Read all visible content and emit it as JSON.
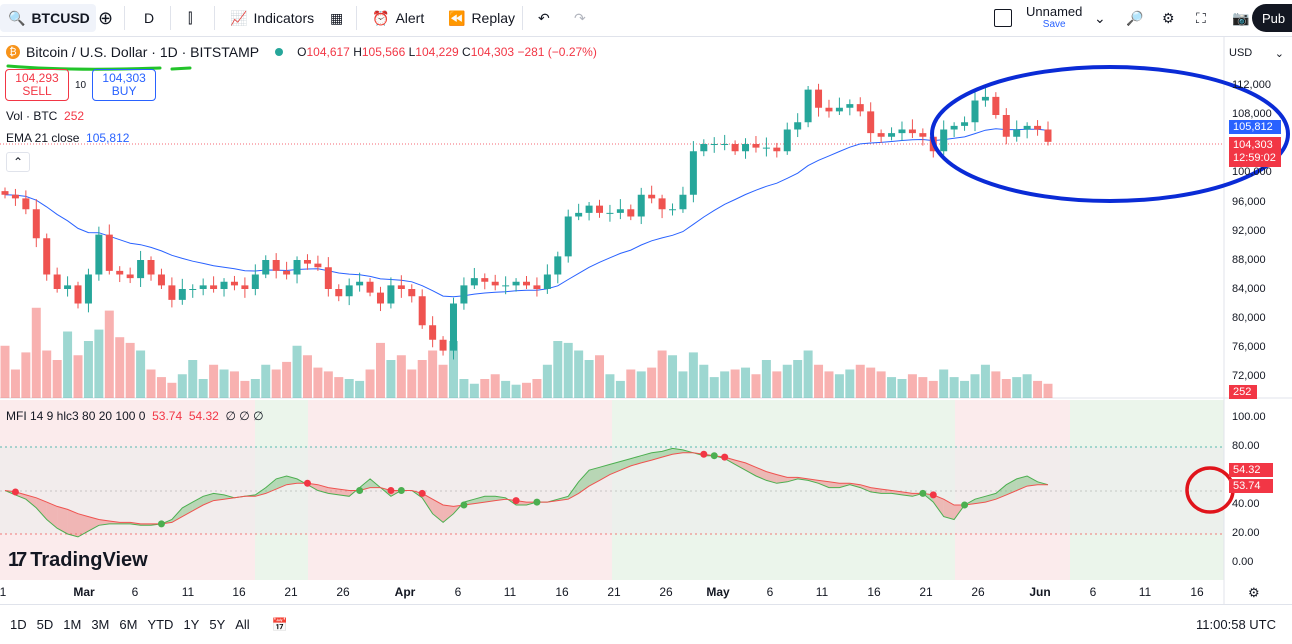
{
  "toolbar": {
    "symbol": "BTCUSD",
    "interval": "D",
    "indicators": "Indicators",
    "alert": "Alert",
    "replay": "Replay",
    "layout_name": "Unnamed",
    "layout_save": "Save",
    "publish": "Pub"
  },
  "legend": {
    "title": "Bitcoin / U.S. Dollar · 1D · BITSTAMP",
    "open_label": "O",
    "open": "104,617",
    "high_label": "H",
    "high": "105,566",
    "low_label": "L",
    "low": "104,229",
    "close_label": "C",
    "close": "104,303",
    "change": "−281 (−0.27%)"
  },
  "trade": {
    "sell_price": "104,293",
    "sell_label": "SELL",
    "spread": "10",
    "buy_price": "104,303",
    "buy_label": "BUY"
  },
  "indicators": {
    "vol_label": "Vol · BTC",
    "vol_value": "252",
    "ema_label": "EMA 21 close",
    "ema_value": "105,812",
    "mfi_label": "MFI 14 9 hlc3 80 20 100 0",
    "mfi_v1": "53.74",
    "mfi_v2": "54.32",
    "mfi_flags": "∅ ∅ ∅"
  },
  "axis": {
    "currency": "USD",
    "price_ticks": [
      "112,000",
      "108,000",
      "100,000",
      "96,000",
      "92,000",
      "88,000",
      "84,000",
      "80,000",
      "76,000",
      "72,000"
    ],
    "ema_tag": "105,812",
    "last_tag": "104,303",
    "countdown": "12:59:02",
    "vol_tag": "252",
    "mfi_ticks": [
      "100.00",
      "80.00",
      "40.00",
      "20.00",
      "0.00"
    ],
    "mfi_tag1": "54.32",
    "mfi_tag2": "53.74",
    "date_ticks": [
      "1",
      "Mar",
      "6",
      "11",
      "16",
      "21",
      "26",
      "Apr",
      "6",
      "11",
      "16",
      "21",
      "26",
      "May",
      "6",
      "11",
      "16",
      "21",
      "26",
      "Jun",
      "6",
      "11",
      "16"
    ]
  },
  "bottom": {
    "timeframes": [
      "1D",
      "5D",
      "1M",
      "3M",
      "6M",
      "YTD",
      "1Y",
      "5Y",
      "All"
    ],
    "clock": "11:00:58 UTC"
  },
  "brand": "TradingView",
  "colors": {
    "up": "#26a69a",
    "down": "#ef5350",
    "ema": "#2962ff",
    "annot_blue": "#0a2bd6",
    "annot_red": "#e0141b",
    "annot_green": "#22c32a"
  }
}
